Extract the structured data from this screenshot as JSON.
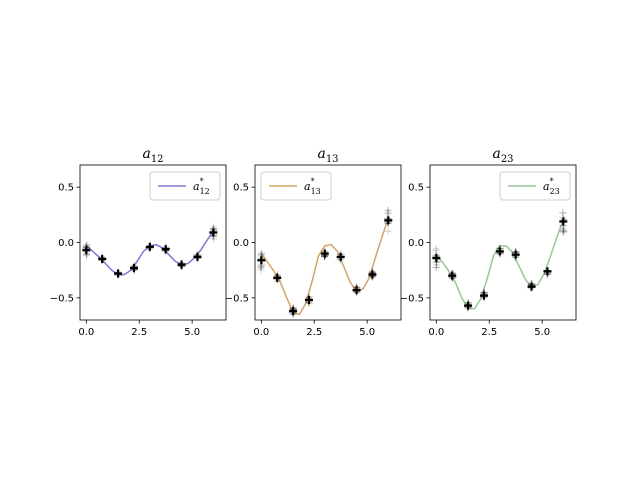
{
  "chart_data": [
    {
      "type": "line",
      "title": {
        "base": "a",
        "sub": "12"
      },
      "legend": {
        "base": "a",
        "sup": "*",
        "sub": "12",
        "placement": "upper right"
      },
      "color": "#8478d4",
      "xlim": [
        -0.3,
        6.6
      ],
      "ylim": [
        -0.7,
        0.7
      ],
      "xticks": [
        0.0,
        2.5,
        5.0
      ],
      "xtick_labels": [
        "0.0",
        "2.5",
        "5.0"
      ],
      "yticks": [
        0.5,
        0.0,
        -0.5
      ],
      "ytick_labels": [
        "0.5",
        "0.0",
        "−0.5"
      ],
      "curve": {
        "x": [
          0.0,
          0.3,
          0.6,
          0.9,
          1.2,
          1.5,
          1.8,
          2.1,
          2.4,
          2.7,
          3.0,
          3.3,
          3.6,
          3.9,
          4.2,
          4.5,
          4.8,
          5.1,
          5.4,
          5.7,
          6.0
        ],
        "y": [
          -0.03,
          -0.08,
          -0.13,
          -0.19,
          -0.25,
          -0.29,
          -0.29,
          -0.25,
          -0.17,
          -0.08,
          -0.03,
          -0.02,
          -0.05,
          -0.11,
          -0.17,
          -0.2,
          -0.19,
          -0.14,
          -0.07,
          0.02,
          0.1
        ]
      },
      "samples": {
        "x": [
          0.0,
          0.75,
          1.5,
          2.25,
          3.0,
          3.75,
          4.5,
          5.25,
          6.0
        ],
        "y": [
          -0.07,
          -0.15,
          -0.28,
          -0.23,
          -0.04,
          -0.06,
          -0.2,
          -0.13,
          0.09
        ],
        "spread": [
          0.06,
          0.02,
          0.02,
          0.02,
          0.02,
          0.02,
          0.02,
          0.02,
          0.06
        ]
      }
    },
    {
      "type": "line",
      "title": {
        "base": "a",
        "sub": "13"
      },
      "legend": {
        "base": "a",
        "sup": "*",
        "sub": "13",
        "placement": "upper left"
      },
      "color": "#d4a36a",
      "xlim": [
        -0.3,
        6.6
      ],
      "ylim": [
        -0.7,
        0.7
      ],
      "xticks": [
        0.0,
        2.5,
        5.0
      ],
      "xtick_labels": [
        "0.0",
        "2.5",
        "5.0"
      ],
      "yticks": [
        0.5,
        0.0,
        -0.5
      ],
      "ytick_labels": [
        "0.5",
        "0.0",
        "−0.5"
      ],
      "curve": {
        "x": [
          0.0,
          0.3,
          0.6,
          0.9,
          1.2,
          1.5,
          1.8,
          2.1,
          2.4,
          2.7,
          3.0,
          3.3,
          3.6,
          3.9,
          4.2,
          4.5,
          4.8,
          5.1,
          5.4,
          5.7,
          6.0
        ],
        "y": [
          -0.1,
          -0.18,
          -0.26,
          -0.36,
          -0.5,
          -0.63,
          -0.65,
          -0.55,
          -0.35,
          -0.12,
          -0.03,
          -0.02,
          -0.08,
          -0.22,
          -0.36,
          -0.44,
          -0.42,
          -0.32,
          -0.13,
          0.05,
          0.22
        ]
      },
      "samples": {
        "x": [
          0.0,
          0.75,
          1.5,
          2.25,
          3.0,
          3.75,
          4.5,
          5.25,
          6.0
        ],
        "y": [
          -0.16,
          -0.32,
          -0.62,
          -0.52,
          -0.1,
          -0.13,
          -0.43,
          -0.29,
          0.2
        ],
        "spread": [
          0.1,
          0.03,
          0.03,
          0.03,
          0.03,
          0.03,
          0.03,
          0.03,
          0.1
        ]
      }
    },
    {
      "type": "line",
      "title": {
        "base": "a",
        "sub": "23"
      },
      "legend": {
        "base": "a",
        "sup": "*",
        "sub": "23",
        "placement": "upper right"
      },
      "color": "#97c995",
      "xlim": [
        -0.3,
        6.6
      ],
      "ylim": [
        -0.7,
        0.7
      ],
      "xticks": [
        0.0,
        2.5,
        5.0
      ],
      "xtick_labels": [
        "0.0",
        "2.5",
        "5.0"
      ],
      "yticks": [
        0.5,
        0.0,
        -0.5
      ],
      "ytick_labels": [
        "0.5",
        "0.0",
        "−0.5"
      ],
      "curve": {
        "x": [
          0.0,
          0.3,
          0.6,
          0.9,
          1.2,
          1.5,
          1.8,
          2.1,
          2.4,
          2.7,
          3.0,
          3.3,
          3.6,
          3.9,
          4.2,
          4.5,
          4.8,
          5.1,
          5.4,
          5.7,
          6.0
        ],
        "y": [
          -0.12,
          -0.18,
          -0.26,
          -0.36,
          -0.5,
          -0.59,
          -0.6,
          -0.51,
          -0.33,
          -0.12,
          -0.03,
          -0.03,
          -0.09,
          -0.21,
          -0.33,
          -0.4,
          -0.38,
          -0.28,
          -0.12,
          0.05,
          0.21
        ]
      },
      "samples": {
        "x": [
          0.0,
          0.75,
          1.5,
          2.25,
          3.0,
          3.75,
          4.5,
          5.25,
          6.0
        ],
        "y": [
          -0.14,
          -0.3,
          -0.57,
          -0.48,
          -0.08,
          -0.11,
          -0.4,
          -0.26,
          0.19
        ],
        "spread": [
          0.1,
          0.03,
          0.03,
          0.03,
          0.03,
          0.03,
          0.03,
          0.03,
          0.1
        ]
      }
    }
  ]
}
